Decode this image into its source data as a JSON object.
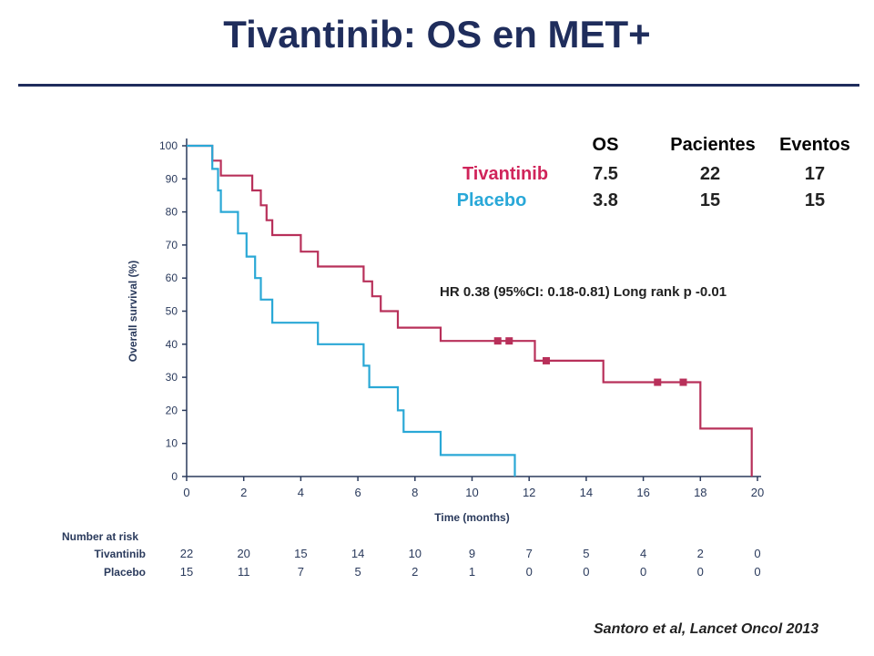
{
  "title": "Tivantinib: OS en MET+",
  "stats_table": {
    "headers": [
      "OS",
      "Pacientes",
      "Eventos"
    ],
    "rows": [
      {
        "name": "Tivantinib",
        "os": "7.5",
        "patients": "22",
        "events": "17",
        "color": "#d0245a"
      },
      {
        "name": "Placebo",
        "os": "3.8",
        "patients": "15",
        "events": "15",
        "color": "#29a8d8"
      }
    ]
  },
  "hr_text": "HR 0.38 (95%CI: 0.18-0.81) Long rank p -0.01",
  "citation": "Santoro et al, Lancet Oncol 2013",
  "risk_table": {
    "heading": "Number at risk",
    "rows": [
      {
        "label": "Tivantinib",
        "values": [
          "22",
          "20",
          "15",
          "14",
          "10",
          "9",
          "7",
          "5",
          "4",
          "2",
          "0"
        ]
      },
      {
        "label": "Placebo",
        "values": [
          "15",
          "11",
          "7",
          "5",
          "2",
          "1",
          "0",
          "0",
          "0",
          "0",
          "0"
        ]
      }
    ]
  },
  "chart_data": {
    "type": "line",
    "step": true,
    "xlabel": "Time (months)",
    "ylabel": "Overall survival (%)",
    "xlim": [
      0,
      20
    ],
    "ylim": [
      0,
      100
    ],
    "xticks": [
      0,
      2,
      4,
      6,
      8,
      10,
      12,
      14,
      16,
      18,
      20
    ],
    "yticks": [
      0,
      10,
      20,
      30,
      40,
      50,
      60,
      70,
      80,
      90,
      100
    ],
    "grid": false,
    "series": [
      {
        "name": "Tivantinib",
        "color": "#b8305a",
        "points": [
          [
            0,
            100
          ],
          [
            0.9,
            100
          ],
          [
            0.9,
            95.5
          ],
          [
            1.2,
            95.5
          ],
          [
            1.2,
            91
          ],
          [
            2.3,
            91
          ],
          [
            2.3,
            86.5
          ],
          [
            2.6,
            86.5
          ],
          [
            2.6,
            82
          ],
          [
            2.8,
            82
          ],
          [
            2.8,
            77.5
          ],
          [
            3.0,
            77.5
          ],
          [
            3.0,
            73
          ],
          [
            4.0,
            73
          ],
          [
            4.0,
            68
          ],
          [
            4.6,
            68
          ],
          [
            4.6,
            63.5
          ],
          [
            6.2,
            63.5
          ],
          [
            6.2,
            59
          ],
          [
            6.5,
            59
          ],
          [
            6.5,
            54.5
          ],
          [
            6.8,
            54.5
          ],
          [
            6.8,
            50
          ],
          [
            7.4,
            50
          ],
          [
            7.4,
            45
          ],
          [
            8.9,
            45
          ],
          [
            8.9,
            41
          ],
          [
            12.2,
            41
          ],
          [
            12.2,
            35
          ],
          [
            14.6,
            35
          ],
          [
            14.6,
            28.5
          ],
          [
            18.0,
            28.5
          ],
          [
            18.0,
            14.5
          ],
          [
            19.8,
            14.5
          ],
          [
            19.8,
            0
          ]
        ],
        "censored": [
          [
            10.9,
            41
          ],
          [
            11.3,
            41
          ],
          [
            12.6,
            35
          ],
          [
            16.5,
            28.5
          ],
          [
            17.4,
            28.5
          ]
        ]
      },
      {
        "name": "Placebo",
        "color": "#2aa8d6",
        "points": [
          [
            0,
            100
          ],
          [
            0.9,
            100
          ],
          [
            0.9,
            93
          ],
          [
            1.1,
            93
          ],
          [
            1.1,
            86.5
          ],
          [
            1.2,
            86.5
          ],
          [
            1.2,
            80
          ],
          [
            1.8,
            80
          ],
          [
            1.8,
            73.5
          ],
          [
            2.1,
            73.5
          ],
          [
            2.1,
            66.5
          ],
          [
            2.4,
            66.5
          ],
          [
            2.4,
            60
          ],
          [
            2.6,
            60
          ],
          [
            2.6,
            53.5
          ],
          [
            3.0,
            53.5
          ],
          [
            3.0,
            46.5
          ],
          [
            4.6,
            46.5
          ],
          [
            4.6,
            40
          ],
          [
            6.2,
            40
          ],
          [
            6.2,
            33.5
          ],
          [
            6.4,
            33.5
          ],
          [
            6.4,
            27
          ],
          [
            7.4,
            27
          ],
          [
            7.4,
            20
          ],
          [
            7.6,
            20
          ],
          [
            7.6,
            13.5
          ],
          [
            8.9,
            13.5
          ],
          [
            8.9,
            6.5
          ],
          [
            11.5,
            6.5
          ],
          [
            11.5,
            0
          ]
        ],
        "censored": []
      }
    ]
  }
}
